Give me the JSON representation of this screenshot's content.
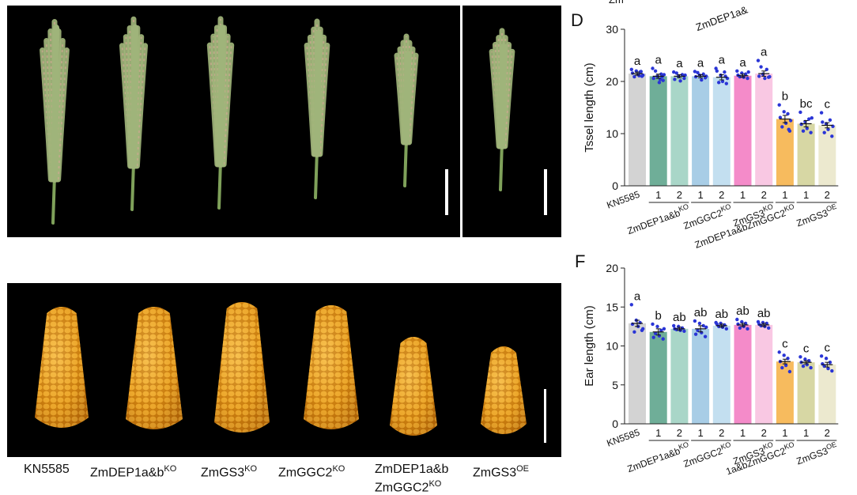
{
  "clipped_top_labels": [
    "Zm",
    "ZmDEP1a&"
  ],
  "tassel_photo": {
    "samples": [
      "KN5585",
      "ZmDEP1a&b KO",
      "ZmGS3 KO",
      "ZmGGC2 KO",
      "ZmDEP1a&b ZmGGC2 KO",
      "ZmGS3 OE"
    ]
  },
  "ear_photo": {
    "labels": [
      {
        "main": "KN5585",
        "sup": "",
        "line2": "",
        "line2_sup": ""
      },
      {
        "main": "ZmDEP1a&b",
        "sup": "KO",
        "line2": "",
        "line2_sup": ""
      },
      {
        "main": "ZmGS3",
        "sup": "KO",
        "line2": "",
        "line2_sup": ""
      },
      {
        "main": "ZmGGC2",
        "sup": "KO",
        "line2": "",
        "line2_sup": ""
      },
      {
        "main": "ZmDEP1a&b",
        "sup": "",
        "line2": "ZmGGC2",
        "line2_sup": "KO"
      },
      {
        "main": "ZmGS3",
        "sup": "OE",
        "line2": "",
        "line2_sup": ""
      }
    ]
  },
  "colors": {
    "bars": [
      "#d3d3d3",
      "#6fae98",
      "#a9d6c8",
      "#a8cde6",
      "#c3dff0",
      "#f48bc9",
      "#f9c8e3",
      "#f7bb5e",
      "#d7d7a4",
      "#ece9cf"
    ],
    "points": "#2a35d6",
    "tassel": "#9fb47a",
    "kernel": "#e59a1a"
  },
  "chart_data": [
    {
      "panel": "D",
      "type": "bar",
      "ylabel": "Tssel length (cm)",
      "ylim": [
        0,
        30
      ],
      "yticks": [
        0,
        10,
        20,
        30
      ],
      "bar_labels": [
        "KN5585",
        "1",
        "2",
        "1",
        "2",
        "1",
        "2",
        "1",
        "1",
        "2"
      ],
      "values": [
        21.5,
        21.0,
        21.0,
        21.0,
        20.8,
        21.1,
        21.5,
        12.8,
        11.9,
        11.6
      ],
      "errors": [
        0.3,
        0.4,
        0.3,
        0.3,
        0.5,
        0.3,
        0.5,
        0.7,
        0.6,
        0.5
      ],
      "significance": [
        "a",
        "a",
        "a",
        "a",
        "a",
        "a",
        "a",
        "b",
        "bc",
        "c"
      ],
      "points": [
        [
          22.3,
          21.0,
          21.8,
          21.3,
          22.0,
          20.9,
          21.6,
          21.2,
          21.9,
          21.1
        ],
        [
          22.5,
          20.2,
          21.4,
          19.8,
          21.0,
          22.0,
          20.6,
          21.3,
          20.9,
          20.4
        ],
        [
          21.8,
          20.6,
          21.3,
          20.1,
          21.0,
          21.6,
          20.4,
          21.2
        ],
        [
          21.9,
          20.7,
          21.4,
          20.3,
          21.2,
          21.7,
          20.9,
          21.0
        ],
        [
          22.5,
          19.6,
          21.8,
          20.0,
          21.2,
          19.8,
          22.0,
          20.6,
          21.0
        ],
        [
          22.0,
          20.6,
          21.4,
          20.8,
          21.6,
          20.9,
          21.2,
          21.8
        ],
        [
          24.0,
          20.8,
          22.3,
          20.6,
          21.4,
          22.8,
          21.0,
          20.9
        ],
        [
          15.5,
          10.5,
          13.8,
          12.0,
          14.2,
          11.3,
          13.1,
          12.5,
          10.8
        ],
        [
          14.1,
          10.2,
          12.8,
          11.0,
          12.3,
          10.5,
          11.8,
          13.0
        ],
        [
          14.0,
          9.5,
          12.6,
          10.8,
          11.9,
          10.2,
          12.2,
          11.4
        ]
      ],
      "groups": [
        {
          "label": "ZmDEP1a&b",
          "sup": "KO",
          "bars": [
            1,
            2
          ]
        },
        {
          "label": "ZmGGC2",
          "sup": "KO",
          "bars": [
            3,
            4
          ]
        },
        {
          "label": "ZmGS3",
          "sup": "KO",
          "bars": [
            5,
            6
          ]
        },
        {
          "label": "ZmDEP1a&bZmGGC2",
          "sup": "KO",
          "bars": [
            7,
            7
          ]
        },
        {
          "label": "ZmGS3",
          "sup": "OE",
          "bars": [
            8,
            9
          ]
        }
      ]
    },
    {
      "panel": "F",
      "type": "bar",
      "ylabel": "Ear length (cm)",
      "ylim": [
        0,
        20
      ],
      "yticks": [
        0,
        5,
        10,
        15,
        20
      ],
      "bar_labels": [
        "KN5585",
        "1",
        "2",
        "1",
        "2",
        "1",
        "2",
        "1",
        "1",
        "2"
      ],
      "values": [
        12.9,
        11.8,
        12.2,
        12.2,
        12.6,
        12.7,
        12.7,
        8.0,
        7.9,
        7.6
      ],
      "errors": [
        0.4,
        0.4,
        0.2,
        0.4,
        0.2,
        0.2,
        0.2,
        0.3,
        0.2,
        0.3
      ],
      "significance": [
        "a",
        "b",
        "ab",
        "ab",
        "ab",
        "ab",
        "ab",
        "c",
        "c",
        "c"
      ],
      "points": [
        [
          15.3,
          12.0,
          13.0,
          12.5,
          13.3,
          11.8,
          12.8,
          12.2
        ],
        [
          12.8,
          10.9,
          12.0,
          11.3,
          12.5,
          11.6,
          11.1,
          12.2
        ],
        [
          12.6,
          11.9,
          12.3,
          12.0,
          12.5,
          12.1,
          12.2
        ],
        [
          13.2,
          11.2,
          12.6,
          11.7,
          12.9,
          12.0,
          11.5,
          12.4
        ],
        [
          13.0,
          12.2,
          12.7,
          12.4,
          12.9,
          12.5,
          12.8
        ],
        [
          13.4,
          12.2,
          12.9,
          12.5,
          13.1,
          12.3,
          12.8
        ],
        [
          13.1,
          12.3,
          12.9,
          12.5,
          13.0,
          12.6,
          12.8
        ],
        [
          9.2,
          6.7,
          8.4,
          7.5,
          8.8,
          7.2,
          8.0
        ],
        [
          8.6,
          7.2,
          8.1,
          7.6,
          8.3,
          7.4,
          7.9
        ],
        [
          8.7,
          6.8,
          7.9,
          7.1,
          8.4,
          7.4,
          7.7
        ]
      ],
      "groups": [
        {
          "label": "ZmDEP1a&b",
          "sup": "KO",
          "bars": [
            1,
            2
          ]
        },
        {
          "label": "ZmGGC2",
          "sup": "KO",
          "bars": [
            3,
            4
          ]
        },
        {
          "label": "ZmGS3",
          "sup": "KO",
          "bars": [
            5,
            6
          ]
        },
        {
          "label": "1a&bZmGGC2",
          "sup": "KO",
          "bars": [
            7,
            7
          ]
        },
        {
          "label": "ZmGS3",
          "sup": "OE",
          "bars": [
            8,
            9
          ]
        }
      ]
    }
  ],
  "panel_letters": {
    "d": "D",
    "f": "F"
  }
}
